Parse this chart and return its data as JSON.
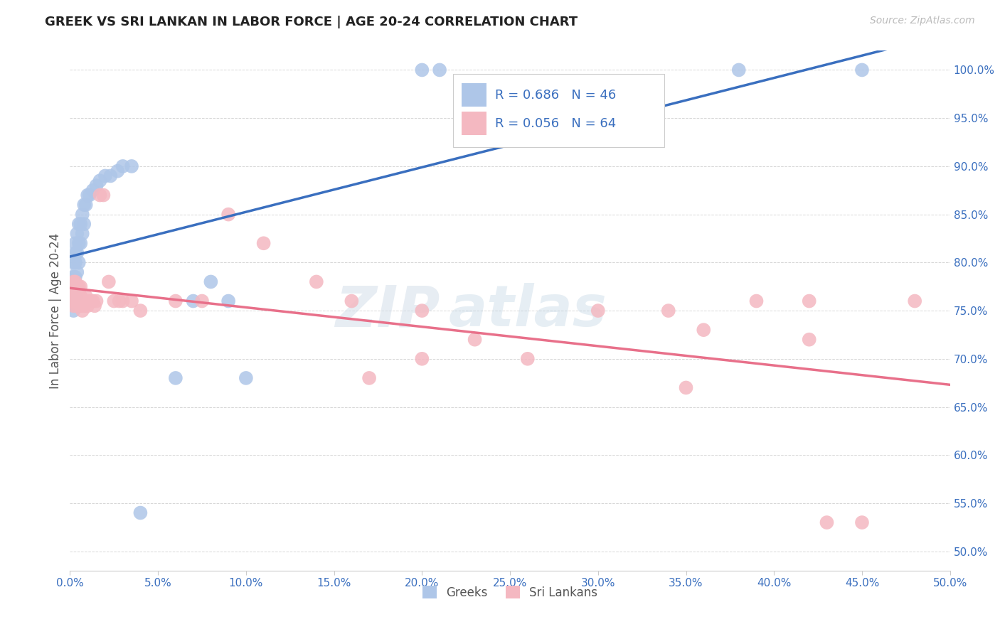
{
  "title": "GREEK VS SRI LANKAN IN LABOR FORCE | AGE 20-24 CORRELATION CHART",
  "source": "Source: ZipAtlas.com",
  "ylabel": "In Labor Force | Age 20-24",
  "xlim": [
    0.0,
    0.5
  ],
  "ylim": [
    0.48,
    1.02
  ],
  "greek_color": "#aec6e8",
  "sri_lankan_color": "#f4b8c1",
  "greek_line_color": "#3a6fbf",
  "sri_lankan_line_color": "#e8708a",
  "greek_R": 0.686,
  "greek_N": 46,
  "sri_lankan_R": 0.056,
  "sri_lankan_N": 64,
  "watermark_zip": "ZIP",
  "watermark_atlas": "atlas",
  "background_color": "#ffffff",
  "greek_x": [
    0.001,
    0.001,
    0.001,
    0.002,
    0.002,
    0.002,
    0.002,
    0.002,
    0.003,
    0.003,
    0.003,
    0.003,
    0.003,
    0.004,
    0.004,
    0.004,
    0.005,
    0.005,
    0.005,
    0.006,
    0.006,
    0.007,
    0.007,
    0.008,
    0.008,
    0.009,
    0.01,
    0.011,
    0.013,
    0.015,
    0.017,
    0.02,
    0.023,
    0.027,
    0.03,
    0.035,
    0.04,
    0.06,
    0.07,
    0.08,
    0.09,
    0.1,
    0.2,
    0.21,
    0.38,
    0.45
  ],
  "greek_y": [
    0.76,
    0.77,
    0.78,
    0.75,
    0.76,
    0.775,
    0.785,
    0.8,
    0.765,
    0.785,
    0.8,
    0.81,
    0.82,
    0.79,
    0.81,
    0.83,
    0.8,
    0.82,
    0.84,
    0.82,
    0.84,
    0.83,
    0.85,
    0.84,
    0.86,
    0.86,
    0.87,
    0.87,
    0.875,
    0.88,
    0.885,
    0.89,
    0.89,
    0.895,
    0.9,
    0.9,
    0.54,
    0.68,
    0.76,
    0.78,
    0.76,
    0.68,
    1.0,
    1.0,
    1.0,
    1.0
  ],
  "sri_lankan_x": [
    0.001,
    0.001,
    0.001,
    0.002,
    0.002,
    0.002,
    0.002,
    0.003,
    0.003,
    0.003,
    0.003,
    0.003,
    0.004,
    0.004,
    0.004,
    0.004,
    0.005,
    0.005,
    0.005,
    0.006,
    0.006,
    0.006,
    0.007,
    0.007,
    0.008,
    0.008,
    0.009,
    0.009,
    0.01,
    0.01,
    0.011,
    0.012,
    0.013,
    0.014,
    0.015,
    0.017,
    0.019,
    0.022,
    0.025,
    0.028,
    0.03,
    0.035,
    0.04,
    0.06,
    0.075,
    0.09,
    0.11,
    0.14,
    0.16,
    0.2,
    0.23,
    0.26,
    0.3,
    0.34,
    0.36,
    0.39,
    0.42,
    0.43,
    0.45,
    0.48,
    0.17,
    0.2,
    0.35,
    0.42
  ],
  "sri_lankan_y": [
    0.77,
    0.76,
    0.775,
    0.755,
    0.765,
    0.77,
    0.78,
    0.76,
    0.77,
    0.775,
    0.78,
    0.76,
    0.765,
    0.755,
    0.76,
    0.775,
    0.76,
    0.77,
    0.775,
    0.755,
    0.765,
    0.775,
    0.75,
    0.76,
    0.755,
    0.76,
    0.76,
    0.765,
    0.755,
    0.76,
    0.76,
    0.76,
    0.76,
    0.755,
    0.76,
    0.87,
    0.87,
    0.78,
    0.76,
    0.76,
    0.76,
    0.76,
    0.75,
    0.76,
    0.76,
    0.85,
    0.82,
    0.78,
    0.76,
    0.75,
    0.72,
    0.7,
    0.75,
    0.75,
    0.73,
    0.76,
    0.76,
    0.53,
    0.53,
    0.76,
    0.68,
    0.7,
    0.67,
    0.72
  ]
}
